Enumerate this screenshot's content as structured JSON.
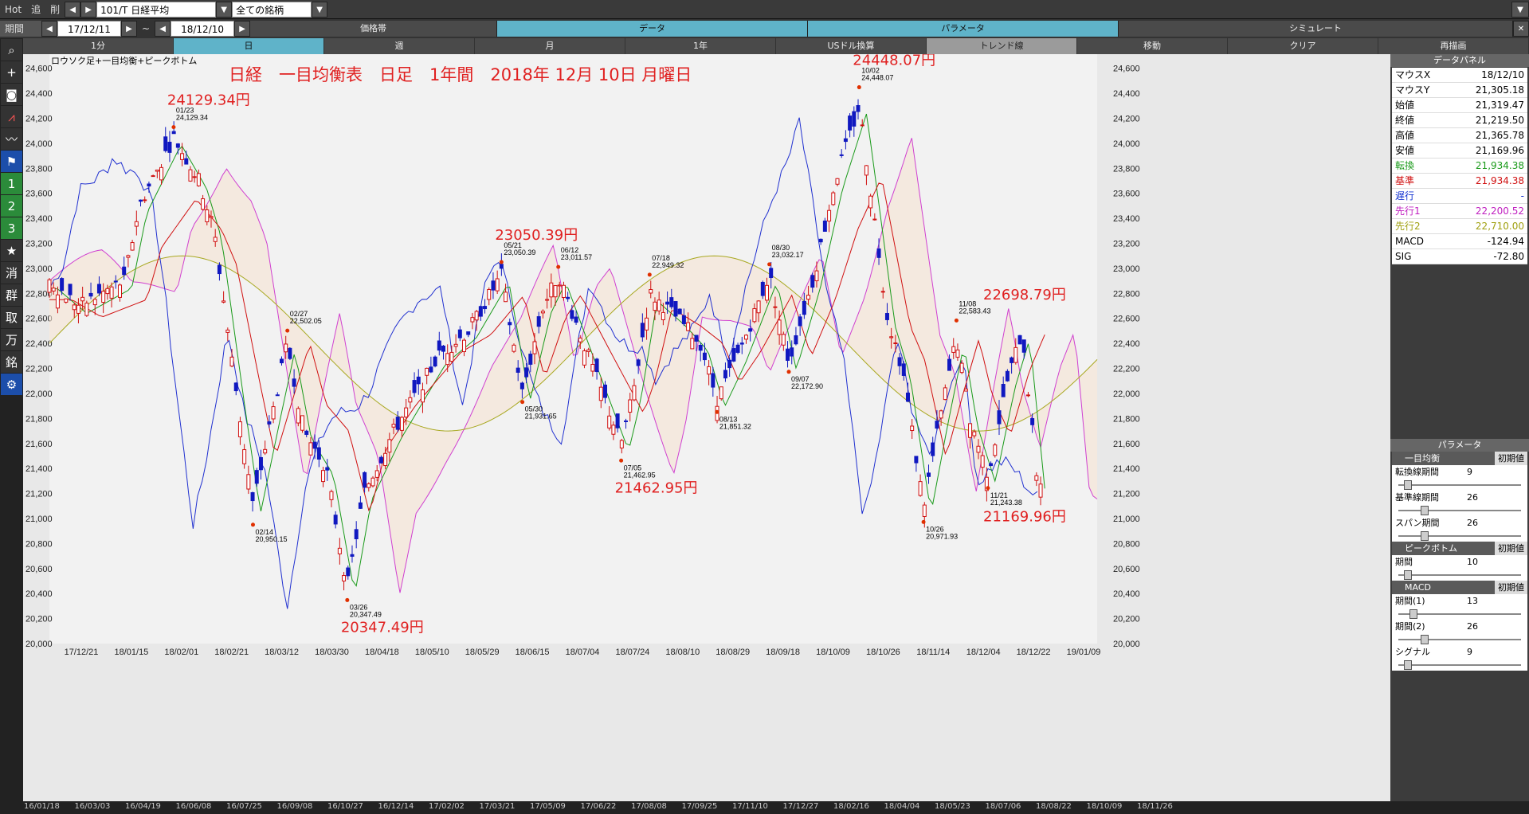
{
  "toolbar": {
    "hot": "Hot",
    "add": "追",
    "del": "削",
    "symbol": "101/T 日経平均",
    "universe": "全ての銘柄",
    "period_label": "期間",
    "date_from": "17/12/11",
    "tilde": "~",
    "date_to": "18/12/10",
    "tabs": [
      "価格帯",
      "データ",
      "パラメータ",
      "シミュレート"
    ]
  },
  "periods": [
    "1分",
    "日",
    "週",
    "月",
    "1年",
    "USドル換算",
    "トレンド線",
    "移動",
    "クリア",
    "再描画"
  ],
  "active_period": "日",
  "side_icons": [
    "search-icon",
    "plus-icon",
    "camera-icon",
    "chart-icon",
    "line-icon",
    "flag-icon",
    "1",
    "2",
    "3",
    "star-icon",
    "消",
    "群",
    "取",
    "万",
    "銘",
    "gear-icon"
  ],
  "chart_data": {
    "type": "candlestick",
    "legend": "ロウソク足+一目均衡+ピークボトム",
    "title": "日経　一目均衡表　日足　1年間　2018年 12月 10日 月曜日",
    "ylim": [
      20000,
      24700
    ],
    "yticks": [
      "24,600",
      "24,400",
      "24,200",
      "24,000",
      "23,800",
      "23,600",
      "23,400",
      "23,200",
      "23,000",
      "22,800",
      "22,600",
      "22,400",
      "22,200",
      "22,000",
      "21,800",
      "21,600",
      "21,400",
      "21,200",
      "21,000",
      "20,800",
      "20,600",
      "20,400",
      "20,200",
      "20,000"
    ],
    "xticks": [
      "17/12/21",
      "18/01/15",
      "18/02/01",
      "18/02/21",
      "18/03/12",
      "18/03/30",
      "18/04/18",
      "18/05/10",
      "18/05/29",
      "18/06/15",
      "18/07/04",
      "18/07/24",
      "18/08/10",
      "18/08/29",
      "18/09/18",
      "18/10/09",
      "18/10/26",
      "18/11/14",
      "18/12/04",
      "18/12/22",
      "19/01/09"
    ],
    "bottom_ticks": [
      "16/01/18",
      "16/03/03",
      "16/04/19",
      "16/06/08",
      "16/07/25",
      "16/09/08",
      "16/10/27",
      "16/12/14",
      "17/02/02",
      "17/03/21",
      "17/05/09",
      "17/06/22",
      "17/08/08",
      "17/09/25",
      "17/11/10",
      "17/12/27",
      "18/02/16",
      "18/04/04",
      "18/05/23",
      "18/07/06",
      "18/08/22",
      "18/10/09",
      "18/11/26"
    ],
    "peaks": [
      {
        "date": "01/23",
        "value": "24,129.34",
        "big": "24129.34円",
        "xi": 0.083,
        "v": 24129.34,
        "type": "top"
      },
      {
        "date": "02/14",
        "value": "20,950.15",
        "big": "",
        "xi": 0.136,
        "v": 20950.15,
        "type": "bot"
      },
      {
        "date": "02/27",
        "value": "22,502.05",
        "big": "",
        "xi": 0.159,
        "v": 22502.05,
        "type": "top"
      },
      {
        "date": "03/26",
        "value": "20,347.49",
        "big": "20347.49円",
        "xi": 0.199,
        "v": 20347.49,
        "type": "bot"
      },
      {
        "date": "05/21",
        "value": "23,050.39",
        "big": "23050.39円",
        "xi": 0.302,
        "v": 23050.39,
        "type": "top"
      },
      {
        "date": "05/30",
        "value": "21,931.65",
        "big": "",
        "xi": 0.316,
        "v": 21931.65,
        "type": "bot"
      },
      {
        "date": "06/12",
        "value": "23,011.57",
        "big": "",
        "xi": 0.34,
        "v": 23011.57,
        "type": "top"
      },
      {
        "date": "07/05",
        "value": "21,462.95",
        "big": "21462.95円",
        "xi": 0.382,
        "v": 21462.95,
        "type": "bot"
      },
      {
        "date": "07/18",
        "value": "22,949.32",
        "big": "",
        "xi": 0.401,
        "v": 22949.32,
        "type": "top"
      },
      {
        "date": "08/13",
        "value": "21,851.32",
        "big": "",
        "xi": 0.446,
        "v": 21851.32,
        "type": "bot"
      },
      {
        "date": "08/30",
        "value": "23,032.17",
        "big": "",
        "xi": 0.481,
        "v": 23032.17,
        "type": "top"
      },
      {
        "date": "09/07",
        "value": "22,172.90",
        "big": "",
        "xi": 0.494,
        "v": 22172.9,
        "type": "bot"
      },
      {
        "date": "10/02",
        "value": "24,448.07",
        "big": "24448.07円",
        "xi": 0.541,
        "v": 24448.07,
        "type": "top"
      },
      {
        "date": "10/26",
        "value": "20,971.93",
        "big": "",
        "xi": 0.584,
        "v": 20971.93,
        "type": "bot"
      },
      {
        "date": "11/08",
        "value": "22,583.43",
        "big": "",
        "xi": 0.606,
        "v": 22583.43,
        "type": "top"
      },
      {
        "date": "11/21",
        "value": "21,243.38",
        "big": "",
        "xi": 0.627,
        "v": 21243.38,
        "type": "bot"
      }
    ],
    "extra_labels": [
      {
        "text": "22698.79円",
        "v": 22698.79
      },
      {
        "text": "21169.96円",
        "v": 21169.96
      }
    ]
  },
  "data_panel": {
    "title": "データパネル",
    "rows": [
      {
        "k": "マウスX",
        "v": "18/12/10",
        "c": "#000"
      },
      {
        "k": "マウスY",
        "v": "21,305.18",
        "c": "#000"
      },
      {
        "k": "始値",
        "v": "21,319.47",
        "c": "#000"
      },
      {
        "k": "終値",
        "v": "21,219.50",
        "c": "#000"
      },
      {
        "k": "高値",
        "v": "21,365.78",
        "c": "#000"
      },
      {
        "k": "安値",
        "v": "21,169.96",
        "c": "#000"
      },
      {
        "k": "転換",
        "v": "21,934.38",
        "c": "#1a9a1a"
      },
      {
        "k": "基準",
        "v": "21,934.38",
        "c": "#d01010"
      },
      {
        "k": "遅行",
        "v": "-",
        "c": "#1030d0"
      },
      {
        "k": "先行1",
        "v": "22,200.52",
        "c": "#c020c0"
      },
      {
        "k": "先行2",
        "v": "22,710.00",
        "c": "#a0a010"
      },
      {
        "k": "MACD",
        "v": "-124.94",
        "c": "#000"
      },
      {
        "k": "SIG",
        "v": "-72.80",
        "c": "#000"
      }
    ]
  },
  "param_panel": {
    "title": "パラメータ",
    "reset": "初期値",
    "sections": [
      {
        "name": "一目均衡",
        "items": [
          {
            "k": "転換線期間",
            "v": "9",
            "pos": 0.05
          },
          {
            "k": "基準線期間",
            "v": "26",
            "pos": 0.2
          },
          {
            "k": "スパン期間",
            "v": "26",
            "pos": 0.2
          }
        ]
      },
      {
        "name": "ピークボトム",
        "items": [
          {
            "k": "期間",
            "v": "10",
            "pos": 0.05
          }
        ]
      },
      {
        "name": "MACD",
        "items": [
          {
            "k": "期間(1)",
            "v": "13",
            "pos": 0.1
          },
          {
            "k": "期間(2)",
            "v": "26",
            "pos": 0.2
          },
          {
            "k": "シグナル",
            "v": "9",
            "pos": 0.05
          }
        ]
      }
    ]
  }
}
